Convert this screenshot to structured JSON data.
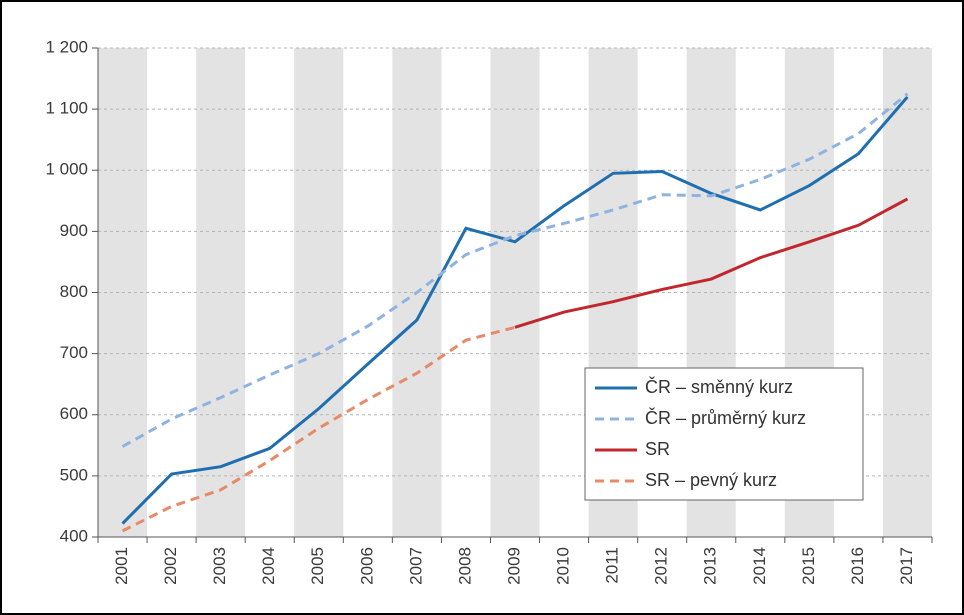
{
  "chart_data": {
    "type": "line",
    "categories": [
      "2001",
      "2002",
      "2003",
      "2004",
      "2005",
      "2006",
      "2007",
      "2008",
      "2009",
      "2010",
      "2011",
      "2012",
      "2013",
      "2014",
      "2015",
      "2016",
      "2017"
    ],
    "ylim": [
      400,
      1200
    ],
    "yticks": [
      400,
      500,
      600,
      700,
      800,
      900,
      {
        "value": 1000,
        "label": "1 000"
      },
      {
        "value": 1100,
        "label": "1 100"
      },
      {
        "value": 1200,
        "label": "1 200"
      }
    ],
    "grid": true,
    "legend": "lower right",
    "series": [
      {
        "name": "ČR – směnný kurz",
        "color": "#1f6fb0",
        "dashed": false,
        "values": [
          422,
          503,
          515,
          545,
          610,
          683,
          755,
          905,
          883,
          942,
          995,
          998,
          962,
          935,
          975,
          1027,
          1120
        ]
      },
      {
        "name": "ČR – průměrný kurz",
        "color": "#8fb3e0",
        "dashed": true,
        "values": [
          548,
          593,
          628,
          665,
          700,
          745,
          800,
          862,
          893,
          913,
          935,
          960,
          958,
          985,
          1018,
          1060,
          1125
        ]
      },
      {
        "name": "SR",
        "color": "#c0282d",
        "dashed": false,
        "values": [
          null,
          null,
          null,
          null,
          null,
          null,
          null,
          null,
          743,
          768,
          785,
          805,
          822,
          857,
          883,
          910,
          953
        ]
      },
      {
        "name": "SR – pevný kurz",
        "color": "#e8896a",
        "dashed": true,
        "values": [
          410,
          450,
          477,
          525,
          578,
          625,
          668,
          722,
          743,
          null,
          null,
          null,
          null,
          null,
          null,
          null,
          null
        ]
      }
    ]
  }
}
